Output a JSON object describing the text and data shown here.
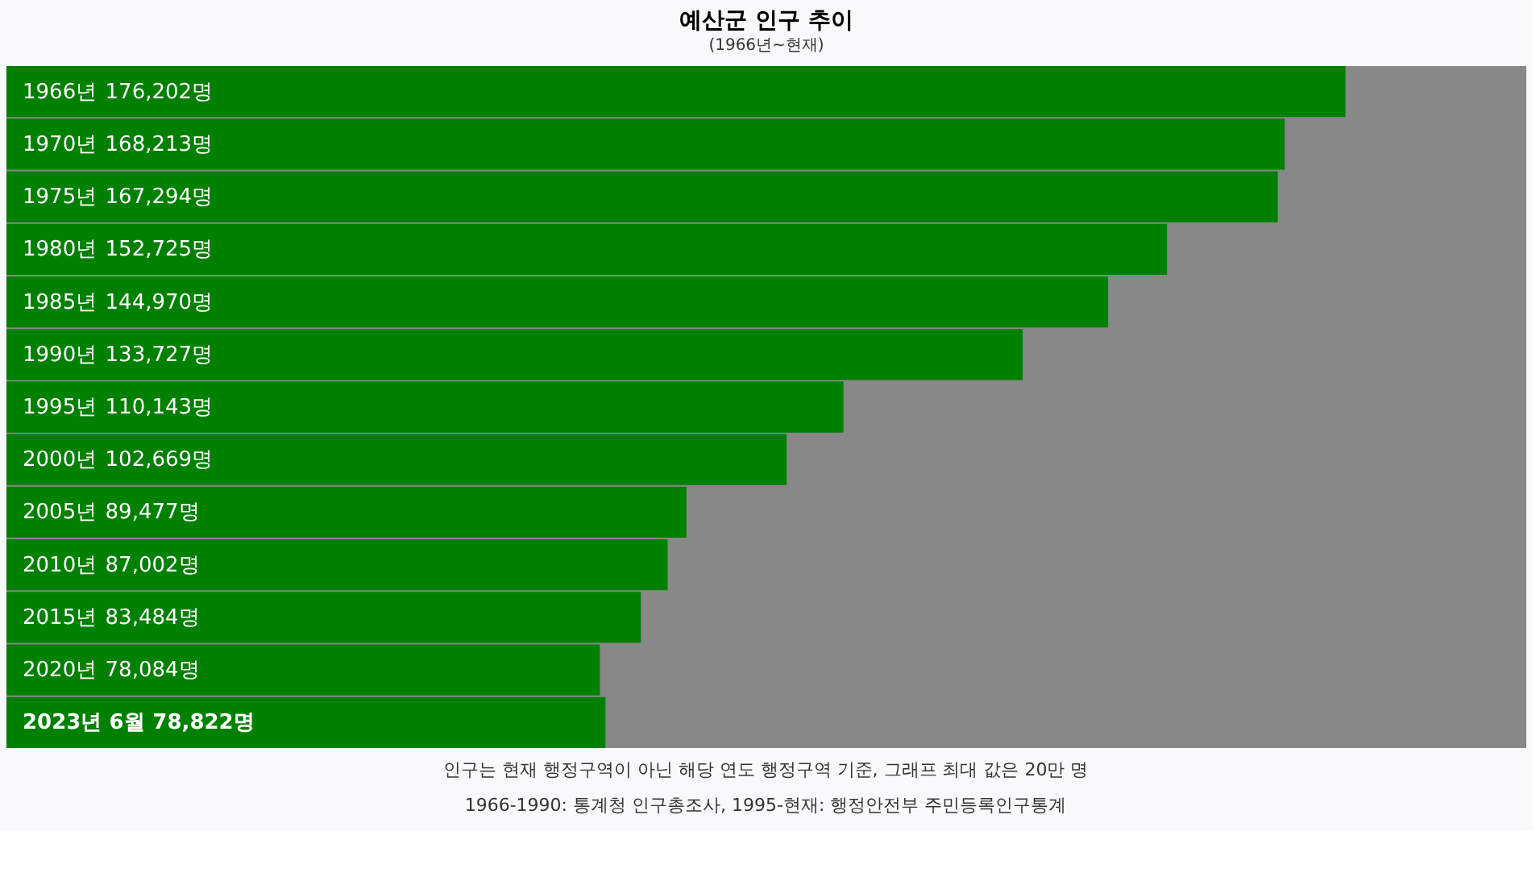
{
  "chart_data": {
    "type": "bar",
    "orientation": "horizontal",
    "title": "예산군 인구 추이",
    "subtitle": "(1966년~현재)",
    "categories": [
      "1966년",
      "1970년",
      "1975년",
      "1980년",
      "1985년",
      "1990년",
      "1995년",
      "2000년",
      "2005년",
      "2010년",
      "2015년",
      "2020년",
      "2023년 6월"
    ],
    "values": [
      176202,
      168213,
      167294,
      152725,
      144970,
      133727,
      110143,
      102669,
      89477,
      87002,
      83484,
      78084,
      78822
    ],
    "value_labels": [
      "176,202명",
      "168,213명",
      "167,294명",
      "152,725명",
      "144,970명",
      "133,727명",
      "110,143명",
      "102,669명",
      "89,477명",
      "87,002명",
      "83,484명",
      "78,084명",
      "78,822명"
    ],
    "color": "#008000",
    "xlim": [
      0,
      200000
    ],
    "annotations": [
      "인구는 현재 행정구역이 아닌 해당 연도 행정구역 기준, 그래프 최대 값은 20만 명",
      "1966-1990: 통계청 인구총조사, 1995-현재: 행정안전부 주민등록인구통계"
    ]
  }
}
